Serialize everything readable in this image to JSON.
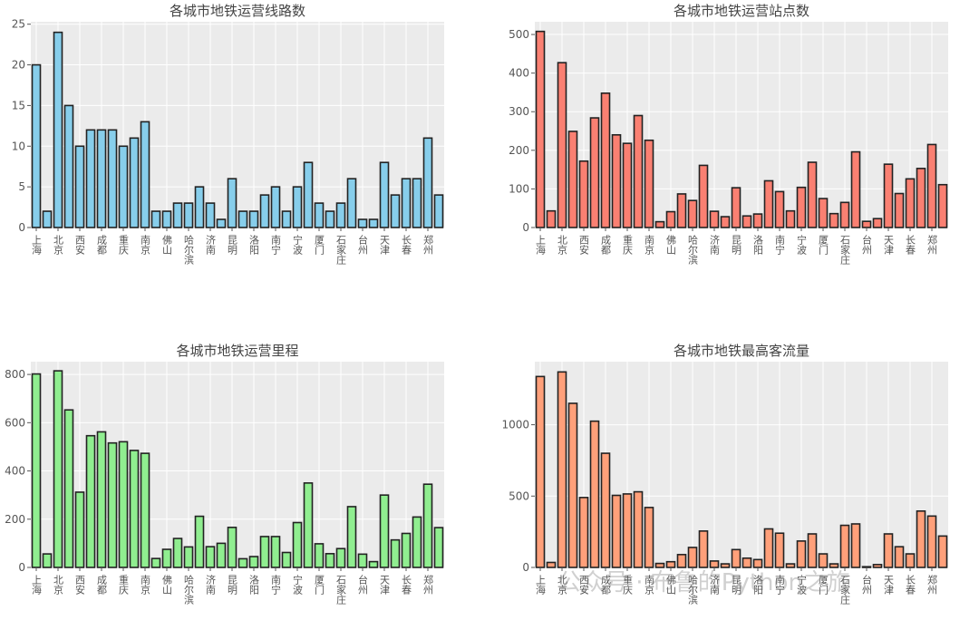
{
  "tick_labels": [
    "上海",
    "北京",
    "西安",
    "成都",
    "重庆",
    "南京",
    "佛山",
    "哈尔滨",
    "济南",
    "昆明",
    "洛阳",
    "南宁",
    "宁波",
    "厦门",
    "石家庄",
    "台州",
    "天津",
    "长春",
    "郑州"
  ],
  "watermark": "公众号 · 布鲁的Python之旅",
  "chart_data": [
    {
      "type": "bar",
      "title": "各城市地铁运营线路数",
      "color": "#87ceeb",
      "ylim": [
        0,
        25.3
      ],
      "yticks": [
        0,
        5,
        10,
        15,
        20,
        25
      ],
      "values": [
        20,
        2,
        24,
        15,
        10,
        12,
        12,
        12,
        10,
        11,
        13,
        2,
        2,
        3,
        3,
        5,
        3,
        1,
        6,
        2,
        2,
        4,
        5,
        2,
        5,
        8,
        3,
        2,
        3,
        6,
        1,
        1,
        8,
        4,
        6,
        6,
        11,
        4
      ]
    },
    {
      "type": "bar",
      "title": "各城市地铁运营站点数",
      "color": "#fa8072",
      "ylim": [
        0,
        533
      ],
      "yticks": [
        0,
        100,
        200,
        300,
        400,
        500
      ],
      "values": [
        508,
        43,
        427,
        249,
        172,
        284,
        348,
        240,
        218,
        290,
        226,
        15,
        41,
        87,
        70,
        161,
        42,
        28,
        103,
        30,
        35,
        121,
        93,
        43,
        104,
        169,
        75,
        36,
        65,
        196,
        16,
        23,
        164,
        88,
        126,
        153,
        215,
        111
      ]
    },
    {
      "type": "bar",
      "title": "各城市地铁运营里程",
      "color": "#90ee90",
      "ylim": [
        0,
        853
      ],
      "yticks": [
        0,
        200,
        400,
        600,
        800
      ],
      "values": [
        802,
        56,
        815,
        653,
        312,
        546,
        562,
        516,
        521,
        485,
        473,
        37,
        75,
        120,
        85,
        212,
        86,
        100,
        166,
        36,
        45,
        128,
        128,
        62,
        186,
        350,
        98,
        57,
        78,
        252,
        55,
        24,
        300,
        114,
        141,
        209,
        345,
        165
      ]
    },
    {
      "type": "bar",
      "title": "各城市地铁最高客流量",
      "color": "#ffa07a",
      "ylim": [
        0,
        1442
      ],
      "yticks": [
        0,
        500,
        1000
      ],
      "values": [
        1338,
        35,
        1370,
        1150,
        490,
        1025,
        800,
        505,
        515,
        530,
        420,
        28,
        40,
        90,
        140,
        255,
        45,
        25,
        125,
        65,
        55,
        270,
        240,
        25,
        185,
        235,
        95,
        25,
        295,
        305,
        5,
        20,
        235,
        145,
        95,
        395,
        360,
        220
      ]
    }
  ]
}
